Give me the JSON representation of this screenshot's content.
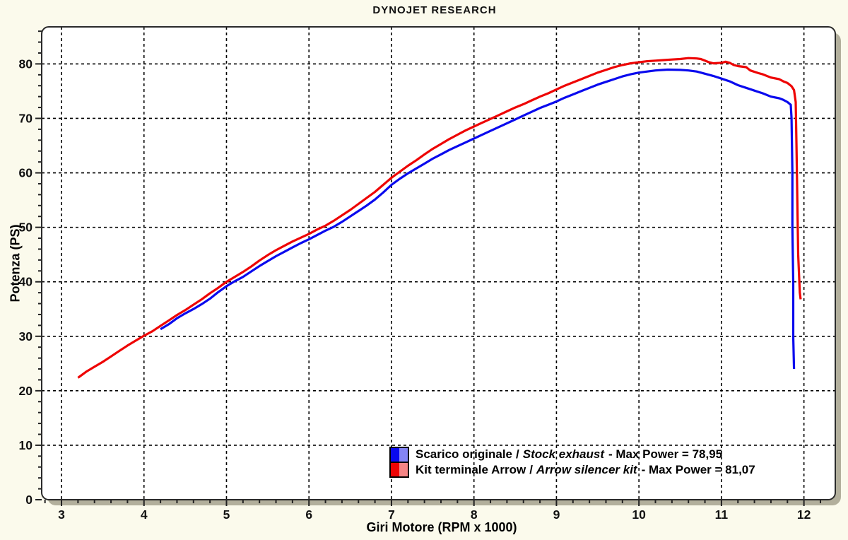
{
  "page": {
    "background_color": "#fbfaec",
    "plot_background": "#ffffff",
    "shadow_color": "#b2af9c",
    "border_color": "#2a2a2a",
    "grid_color": "#000000"
  },
  "legend": {
    "separator": "/",
    "rows": [
      {
        "name": "Scarico originale",
        "name_alt": "Stock exhaust",
        "suffix": "-  Max Power = 78,95"
      },
      {
        "name": "Kit terminale Arrow",
        "name_alt": "Arrow silencer kit",
        "suffix": "- Max Power = 81,07"
      }
    ]
  },
  "chart_data": {
    "type": "line",
    "title": "DYNOJET RESEARCH",
    "xlabel": "Giri Motore (RPM x 1000)",
    "ylabel": "Potenza (PS)",
    "xlim": [
      2.76,
      12.38
    ],
    "ylim": [
      0,
      86.8
    ],
    "x_ticks": [
      3,
      4,
      5,
      6,
      7,
      8,
      9,
      10,
      11,
      12
    ],
    "y_ticks": [
      0,
      10,
      20,
      30,
      40,
      50,
      60,
      70,
      80
    ],
    "x_minor_step": 0.2,
    "y_minor_step": 2,
    "grid": "dashed",
    "legend_position": "inside-bottom-center",
    "series": [
      {
        "name": "Scarico originale / Stock exhaust",
        "max_power": 78.95,
        "color": "#0a0aee",
        "color_light": "#8585f5",
        "points": [
          [
            4.2,
            31.3
          ],
          [
            4.3,
            32.2
          ],
          [
            4.4,
            33.3
          ],
          [
            4.5,
            34.2
          ],
          [
            4.6,
            35.0
          ],
          [
            4.7,
            35.9
          ],
          [
            4.8,
            36.9
          ],
          [
            4.9,
            38.1
          ],
          [
            5.0,
            39.2
          ],
          [
            5.1,
            40.1
          ],
          [
            5.2,
            40.9
          ],
          [
            5.3,
            41.9
          ],
          [
            5.4,
            42.9
          ],
          [
            5.5,
            43.8
          ],
          [
            5.6,
            44.7
          ],
          [
            5.7,
            45.5
          ],
          [
            5.8,
            46.3
          ],
          [
            5.9,
            47.1
          ],
          [
            6.0,
            47.8
          ],
          [
            6.1,
            48.6
          ],
          [
            6.2,
            49.4
          ],
          [
            6.3,
            50.1
          ],
          [
            6.4,
            51.0
          ],
          [
            6.5,
            52.0
          ],
          [
            6.6,
            53.0
          ],
          [
            6.7,
            54.0
          ],
          [
            6.8,
            55.1
          ],
          [
            6.9,
            56.4
          ],
          [
            7.0,
            57.8
          ],
          [
            7.1,
            58.9
          ],
          [
            7.2,
            59.9
          ],
          [
            7.3,
            60.8
          ],
          [
            7.4,
            61.7
          ],
          [
            7.5,
            62.6
          ],
          [
            7.6,
            63.4
          ],
          [
            7.7,
            64.2
          ],
          [
            7.8,
            64.9
          ],
          [
            7.9,
            65.6
          ],
          [
            8.0,
            66.3
          ],
          [
            8.1,
            67.0
          ],
          [
            8.2,
            67.7
          ],
          [
            8.3,
            68.4
          ],
          [
            8.4,
            69.1
          ],
          [
            8.5,
            69.8
          ],
          [
            8.6,
            70.5
          ],
          [
            8.7,
            71.2
          ],
          [
            8.8,
            71.9
          ],
          [
            8.9,
            72.5
          ],
          [
            9.0,
            73.1
          ],
          [
            9.1,
            73.8
          ],
          [
            9.2,
            74.4
          ],
          [
            9.3,
            75.0
          ],
          [
            9.4,
            75.6
          ],
          [
            9.5,
            76.2
          ],
          [
            9.6,
            76.7
          ],
          [
            9.7,
            77.2
          ],
          [
            9.8,
            77.7
          ],
          [
            9.9,
            78.1
          ],
          [
            10.0,
            78.4
          ],
          [
            10.1,
            78.6
          ],
          [
            10.2,
            78.8
          ],
          [
            10.3,
            78.9
          ],
          [
            10.35,
            78.95
          ],
          [
            10.5,
            78.9
          ],
          [
            10.6,
            78.8
          ],
          [
            10.7,
            78.6
          ],
          [
            10.8,
            78.2
          ],
          [
            10.9,
            77.8
          ],
          [
            11.0,
            77.3
          ],
          [
            11.1,
            76.8
          ],
          [
            11.2,
            76.1
          ],
          [
            11.3,
            75.6
          ],
          [
            11.4,
            75.1
          ],
          [
            11.5,
            74.6
          ],
          [
            11.6,
            74.0
          ],
          [
            11.7,
            73.7
          ],
          [
            11.75,
            73.4
          ],
          [
            11.8,
            73.0
          ],
          [
            11.84,
            72.5
          ],
          [
            11.85,
            70.0
          ],
          [
            11.86,
            60.0
          ],
          [
            11.86,
            50.0
          ],
          [
            11.87,
            40.0
          ],
          [
            11.87,
            30.0
          ],
          [
            11.88,
            24.0
          ]
        ]
      },
      {
        "name": "Kit terminale Arrow / Arrow silencer kit",
        "max_power": 81.07,
        "color": "#ee0404",
        "color_light": "#f58585",
        "points": [
          [
            3.2,
            22.4
          ],
          [
            3.3,
            23.5
          ],
          [
            3.4,
            24.4
          ],
          [
            3.5,
            25.3
          ],
          [
            3.6,
            26.3
          ],
          [
            3.7,
            27.3
          ],
          [
            3.8,
            28.3
          ],
          [
            3.9,
            29.2
          ],
          [
            4.0,
            30.1
          ],
          [
            4.1,
            30.9
          ],
          [
            4.2,
            31.9
          ],
          [
            4.3,
            32.9
          ],
          [
            4.4,
            33.9
          ],
          [
            4.5,
            34.8
          ],
          [
            4.6,
            35.8
          ],
          [
            4.7,
            36.8
          ],
          [
            4.8,
            37.9
          ],
          [
            4.9,
            38.9
          ],
          [
            5.0,
            40.0
          ],
          [
            5.1,
            40.9
          ],
          [
            5.2,
            41.8
          ],
          [
            5.3,
            42.8
          ],
          [
            5.4,
            43.9
          ],
          [
            5.5,
            44.9
          ],
          [
            5.6,
            45.8
          ],
          [
            5.7,
            46.6
          ],
          [
            5.8,
            47.4
          ],
          [
            5.9,
            48.1
          ],
          [
            6.0,
            48.8
          ],
          [
            6.1,
            49.6
          ],
          [
            6.2,
            50.3
          ],
          [
            6.3,
            51.2
          ],
          [
            6.4,
            52.2
          ],
          [
            6.5,
            53.2
          ],
          [
            6.6,
            54.3
          ],
          [
            6.7,
            55.4
          ],
          [
            6.8,
            56.5
          ],
          [
            6.9,
            57.8
          ],
          [
            7.0,
            59.1
          ],
          [
            7.1,
            60.2
          ],
          [
            7.2,
            61.3
          ],
          [
            7.3,
            62.3
          ],
          [
            7.4,
            63.4
          ],
          [
            7.5,
            64.4
          ],
          [
            7.6,
            65.3
          ],
          [
            7.7,
            66.2
          ],
          [
            7.8,
            67.0
          ],
          [
            7.9,
            67.8
          ],
          [
            8.0,
            68.5
          ],
          [
            8.1,
            69.2
          ],
          [
            8.2,
            69.9
          ],
          [
            8.3,
            70.6
          ],
          [
            8.4,
            71.3
          ],
          [
            8.5,
            72.0
          ],
          [
            8.6,
            72.6
          ],
          [
            8.7,
            73.3
          ],
          [
            8.8,
            74.0
          ],
          [
            8.9,
            74.6
          ],
          [
            9.0,
            75.3
          ],
          [
            9.1,
            76.0
          ],
          [
            9.2,
            76.6
          ],
          [
            9.3,
            77.2
          ],
          [
            9.4,
            77.8
          ],
          [
            9.5,
            78.4
          ],
          [
            9.6,
            78.9
          ],
          [
            9.7,
            79.4
          ],
          [
            9.8,
            79.8
          ],
          [
            9.9,
            80.1
          ],
          [
            10.0,
            80.3
          ],
          [
            10.1,
            80.5
          ],
          [
            10.2,
            80.6
          ],
          [
            10.3,
            80.7
          ],
          [
            10.4,
            80.8
          ],
          [
            10.5,
            80.9
          ],
          [
            10.6,
            81.07
          ],
          [
            10.7,
            81.0
          ],
          [
            10.75,
            80.9
          ],
          [
            10.8,
            80.6
          ],
          [
            10.85,
            80.3
          ],
          [
            10.9,
            80.1
          ],
          [
            11.0,
            80.2
          ],
          [
            11.05,
            80.4
          ],
          [
            11.1,
            80.2
          ],
          [
            11.15,
            79.8
          ],
          [
            11.2,
            79.6
          ],
          [
            11.3,
            79.4
          ],
          [
            11.35,
            78.8
          ],
          [
            11.45,
            78.3
          ],
          [
            11.5,
            78.1
          ],
          [
            11.6,
            77.5
          ],
          [
            11.7,
            77.2
          ],
          [
            11.75,
            76.8
          ],
          [
            11.8,
            76.5
          ],
          [
            11.85,
            75.9
          ],
          [
            11.88,
            75.2
          ],
          [
            11.9,
            73.0
          ],
          [
            11.91,
            65.0
          ],
          [
            11.92,
            55.0
          ],
          [
            11.93,
            45.0
          ],
          [
            11.95,
            38.0
          ],
          [
            11.96,
            36.8
          ]
        ]
      }
    ]
  }
}
